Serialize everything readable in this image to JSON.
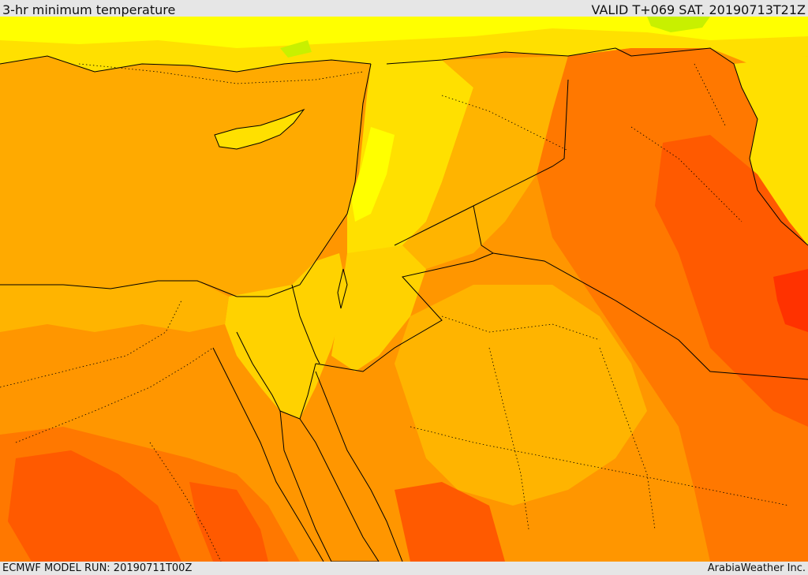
{
  "header": {
    "title": "3-hr minimum temperature",
    "valid_time": "VALID T+069 SAT. 20190713T21Z"
  },
  "footer": {
    "model_run": "ECMWF MODEL RUN: 20190711T00Z",
    "credit": "ArabiaWeather Inc."
  },
  "map": {
    "colors": {
      "sea": "#ffaa00",
      "cool_green": "#c8f000",
      "yellow": "#ffff00",
      "light_yellow": "#ffe000",
      "gold": "#ffd200",
      "amber": "#ffb400",
      "orange": "#ff9600",
      "dark_orange": "#ff7800",
      "red_orange": "#ff5a00",
      "red": "#ff3200",
      "border": "#000000"
    }
  }
}
